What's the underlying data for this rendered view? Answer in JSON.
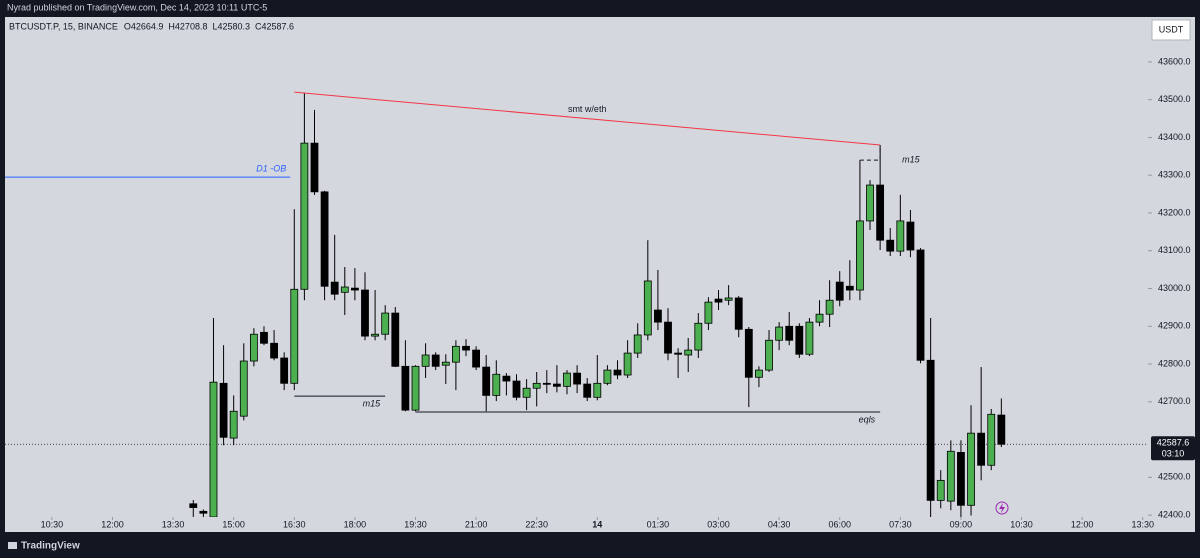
{
  "chart_data": {
    "type": "candlestick",
    "publisher": "Nyrad published on TradingView.com, Dec 14, 2023 10:11 UTC-5",
    "symbol": "BTCUSDT.P, 15, BINANCE",
    "ohlc_legend": [
      "O42664.9",
      "H42708.8",
      "L42580.3",
      "C42587.6"
    ],
    "currency": "USDT",
    "footer": "TradingView",
    "up_color": "#4caf50",
    "down_color": "#000000",
    "x": [
      14,
      14.25,
      14.5,
      14.75,
      15,
      15.25,
      15.5,
      15.75,
      16,
      16.25,
      16.5,
      16.75,
      17,
      17.25,
      17.5,
      17.75,
      18,
      18.25,
      18.5,
      18.75,
      19,
      19.25,
      19.5,
      19.75,
      20,
      20.25,
      20.5,
      20.75,
      21,
      21.25,
      21.5,
      21.75,
      22,
      22.25,
      22.5,
      22.75,
      23,
      23.25,
      23.5,
      23.75,
      24,
      24.25,
      24.5,
      24.75,
      25,
      25.25,
      25.5,
      25.75,
      26,
      26.25,
      26.5,
      26.75,
      27,
      27.25,
      27.5,
      27.75,
      28,
      28.25,
      28.5,
      28.75,
      29,
      29.25,
      29.5,
      29.75,
      30,
      30.25,
      30.5,
      30.75,
      31,
      31.25,
      31.5,
      31.75,
      32,
      32.25,
      32.5,
      32.75,
      33,
      33.25,
      33.5,
      33.75,
      34
    ],
    "open": [
      42430,
      42410,
      42395,
      42749,
      42604,
      42662,
      42808,
      42884,
      42855,
      42816,
      42749,
      42998,
      43385,
      43256,
      43017,
      42990,
      43001,
      42996,
      42874,
      42879,
      42935,
      42794,
      42678,
      42794,
      42824,
      42797,
      42805,
      42847,
      42837,
      42792,
      42717,
      42768,
      42755,
      42712,
      42736,
      42749,
      42747,
      42741,
      42776,
      42747,
      42712,
      42749,
      42784,
      42771,
      42829,
      42877,
      42943,
      42911,
      42829,
      42824,
      42837,
      42908,
      42972,
      42969,
      42975,
      42892,
      42765,
      42784,
      42863,
      42900,
      42900,
      42826,
      42911,
      42932,
      43017,
      43006,
      42996,
      43179,
      43274,
      43128,
      43099,
      43176,
      43102,
      42810,
      42439,
      42437,
      42566,
      42426,
      42617,
      42532,
      42664.9
    ],
    "high": [
      42440,
      42415,
      42922,
      42850,
      42717,
      42855,
      42895,
      42900,
      42890,
      42831,
      43210,
      43518,
      43473,
      43259,
      43142,
      43057,
      43054,
      43043,
      42996,
      42956,
      42951,
      42863,
      42797,
      42855,
      42831,
      42826,
      42863,
      42866,
      42847,
      42824,
      42810,
      42776,
      42773,
      42760,
      42779,
      42784,
      42797,
      42784,
      42797,
      42763,
      42824,
      42797,
      42810,
      42863,
      42908,
      43128,
      43049,
      42948,
      42842,
      42869,
      42935,
      42977,
      42996,
      43009,
      42980,
      42898,
      42794,
      42890,
      42911,
      42938,
      42908,
      42922,
      42969,
      43022,
      43046,
      43075,
      43340,
      43287,
      43380,
      43160,
      43248,
      43208,
      43107,
      42922,
      42519,
      42598,
      42598,
      42691,
      42792,
      42681,
      42708.8
    ],
    "low": [
      42380,
      42395,
      42390,
      42585,
      42585,
      42651,
      42794,
      42850,
      42810,
      42731,
      42731,
      42969,
      43248,
      42969,
      42969,
      42930,
      42969,
      42863,
      42863,
      42863,
      42792,
      42675,
      42675,
      42763,
      42784,
      42747,
      42731,
      42821,
      42784,
      42675,
      42702,
      42717,
      42704,
      42678,
      42688,
      42723,
      42725,
      42720,
      42723,
      42702,
      42704,
      42744,
      42760,
      42763,
      42816,
      42863,
      42890,
      42810,
      42763,
      42779,
      42816,
      42890,
      42943,
      42956,
      42871,
      42686,
      42739,
      42779,
      42837,
      42850,
      42816,
      42821,
      42900,
      42898,
      42953,
      42969,
      42969,
      43155,
      43102,
      43086,
      43086,
      43083,
      42802,
      42394,
      42418,
      42413,
      42394,
      42399,
      42492,
      42519,
      42580.3
    ],
    "close": [
      42420,
      42405,
      42752,
      42606,
      42675,
      42808,
      42879,
      42855,
      42816,
      42749,
      42998,
      43385,
      43256,
      43006,
      42985,
      43004,
      42996,
      42874,
      42879,
      42935,
      42794,
      42678,
      42794,
      42824,
      42794,
      42805,
      42847,
      42837,
      42792,
      42717,
      42773,
      42755,
      42712,
      42736,
      42749,
      42747,
      42741,
      42776,
      42747,
      42712,
      42749,
      42784,
      42771,
      42829,
      42877,
      43020,
      42911,
      42829,
      42826,
      42837,
      42908,
      42964,
      42964,
      42975,
      42892,
      42765,
      42784,
      42863,
      42898,
      42863,
      42826,
      42911,
      42932,
      42969,
      42969,
      42996,
      43179,
      43274,
      43128,
      43099,
      43179,
      43102,
      42810,
      42439,
      42492,
      42569,
      42426,
      42617,
      42532,
      42667,
      42587.6
    ],
    "xlim": [
      9.34,
      37.63
    ],
    "ylim": [
      42395,
      43719
    ],
    "xticks": [
      {
        "value": 10.5,
        "label": "10:30"
      },
      {
        "value": 12,
        "label": "12:00"
      },
      {
        "value": 13.5,
        "label": "13:30"
      },
      {
        "value": 15,
        "label": "15:00"
      },
      {
        "value": 16.5,
        "label": "16:30"
      },
      {
        "value": 18,
        "label": "18:00"
      },
      {
        "value": 19.5,
        "label": "19:30"
      },
      {
        "value": 21,
        "label": "21:00"
      },
      {
        "value": 22.5,
        "label": "22:30"
      },
      {
        "value": 24,
        "label": "14"
      },
      {
        "value": 25.5,
        "label": "01:30"
      },
      {
        "value": 27,
        "label": "03:00"
      },
      {
        "value": 28.5,
        "label": "04:30"
      },
      {
        "value": 30,
        "label": "06:00"
      },
      {
        "value": 31.5,
        "label": "07:30"
      },
      {
        "value": 33,
        "label": "09:00"
      },
      {
        "value": 34.5,
        "label": "10:30"
      },
      {
        "value": 36,
        "label": "12:00"
      },
      {
        "value": 37.5,
        "label": "13:30"
      }
    ],
    "yticks": [
      {
        "value": 42400,
        "label": "42400.0"
      },
      {
        "value": 42500,
        "label": "42500.0"
      },
      {
        "value": 42700,
        "label": "42700.0"
      },
      {
        "value": 42800,
        "label": "42800.0"
      },
      {
        "value": 42900,
        "label": "42900.0"
      },
      {
        "value": 43000,
        "label": "43000.0"
      },
      {
        "value": 43100,
        "label": "43100.0"
      },
      {
        "value": 43200,
        "label": "43200.0"
      },
      {
        "value": 43300,
        "label": "43300.0"
      },
      {
        "value": 43400,
        "label": "43400.0"
      },
      {
        "value": 43500,
        "label": "43500.0"
      },
      {
        "value": 43600,
        "label": "43600.0"
      }
    ],
    "current_price": 42587.6,
    "countdown": "03:10",
    "annotations": [
      {
        "label": "D1 -OB",
        "x": [
          9.34,
          16.4
        ],
        "y": [
          43295,
          43295
        ],
        "color": "#2962ff",
        "style": "solid",
        "label_position": "above-end"
      },
      {
        "label": "smt w/eth",
        "x": [
          16.5,
          31
        ],
        "y": [
          43520,
          43380
        ],
        "color": "#f23645",
        "style": "solid",
        "label_position": "above-middle"
      },
      {
        "label": "m15",
        "x": [
          30.5,
          31,
          31
        ],
        "y": [
          43340,
          43340,
          43380
        ],
        "color": "#131722",
        "style": "dashed",
        "label_position": "right-start"
      },
      {
        "label": "m15",
        "x": [
          16.5,
          18.75
        ],
        "y": [
          42715,
          42715
        ],
        "color": "#131722",
        "style": "solid",
        "label_position": "below-end"
      },
      {
        "label": "eqls",
        "x": [
          19.5,
          31
        ],
        "y": [
          42673,
          42673
        ],
        "color": "#131722",
        "style": "solid",
        "label_position": "below-end"
      }
    ]
  }
}
